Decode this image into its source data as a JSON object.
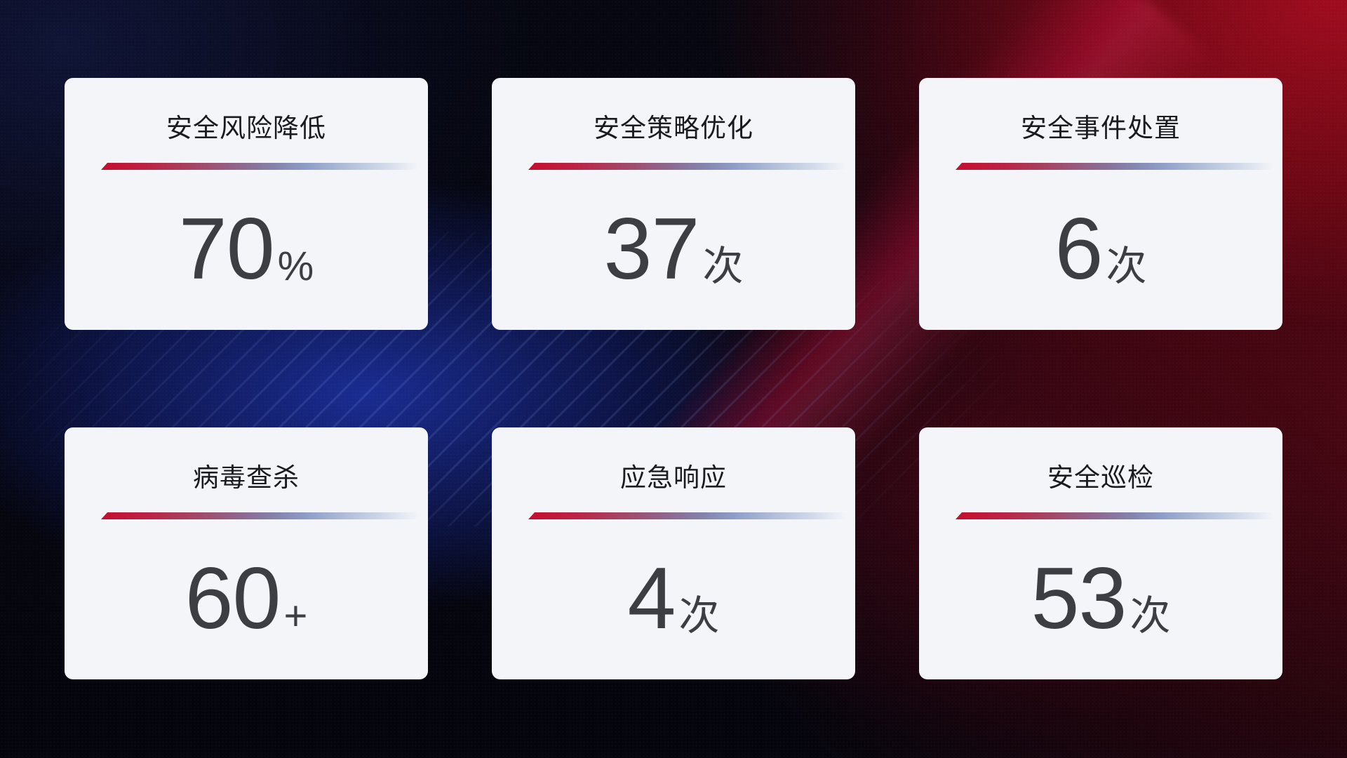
{
  "dashboard": {
    "cards": [
      {
        "title": "安全风险降低",
        "value": "70",
        "unit": "%"
      },
      {
        "title": "安全策略优化",
        "value": "37",
        "unit": "次"
      },
      {
        "title": "安全事件处置",
        "value": "6",
        "unit": "次"
      },
      {
        "title": "病毒查杀",
        "value": "60",
        "unit": "+"
      },
      {
        "title": "应急响应",
        "value": "4",
        "unit": "次"
      },
      {
        "title": "安全巡检",
        "value": "53",
        "unit": "次"
      }
    ],
    "colors": {
      "card_background": "#f4f5f9",
      "title_text": "#1a1b1f",
      "value_text": "#3d3e43",
      "accent_line_red": "#c60d2f",
      "accent_line_blue": "#8e9ec7",
      "background_navy": "#10163a",
      "background_blue_glow": "#1c30a0",
      "background_red_glow": "#a60d20",
      "background_crimson_beam": "#c80f41"
    }
  }
}
